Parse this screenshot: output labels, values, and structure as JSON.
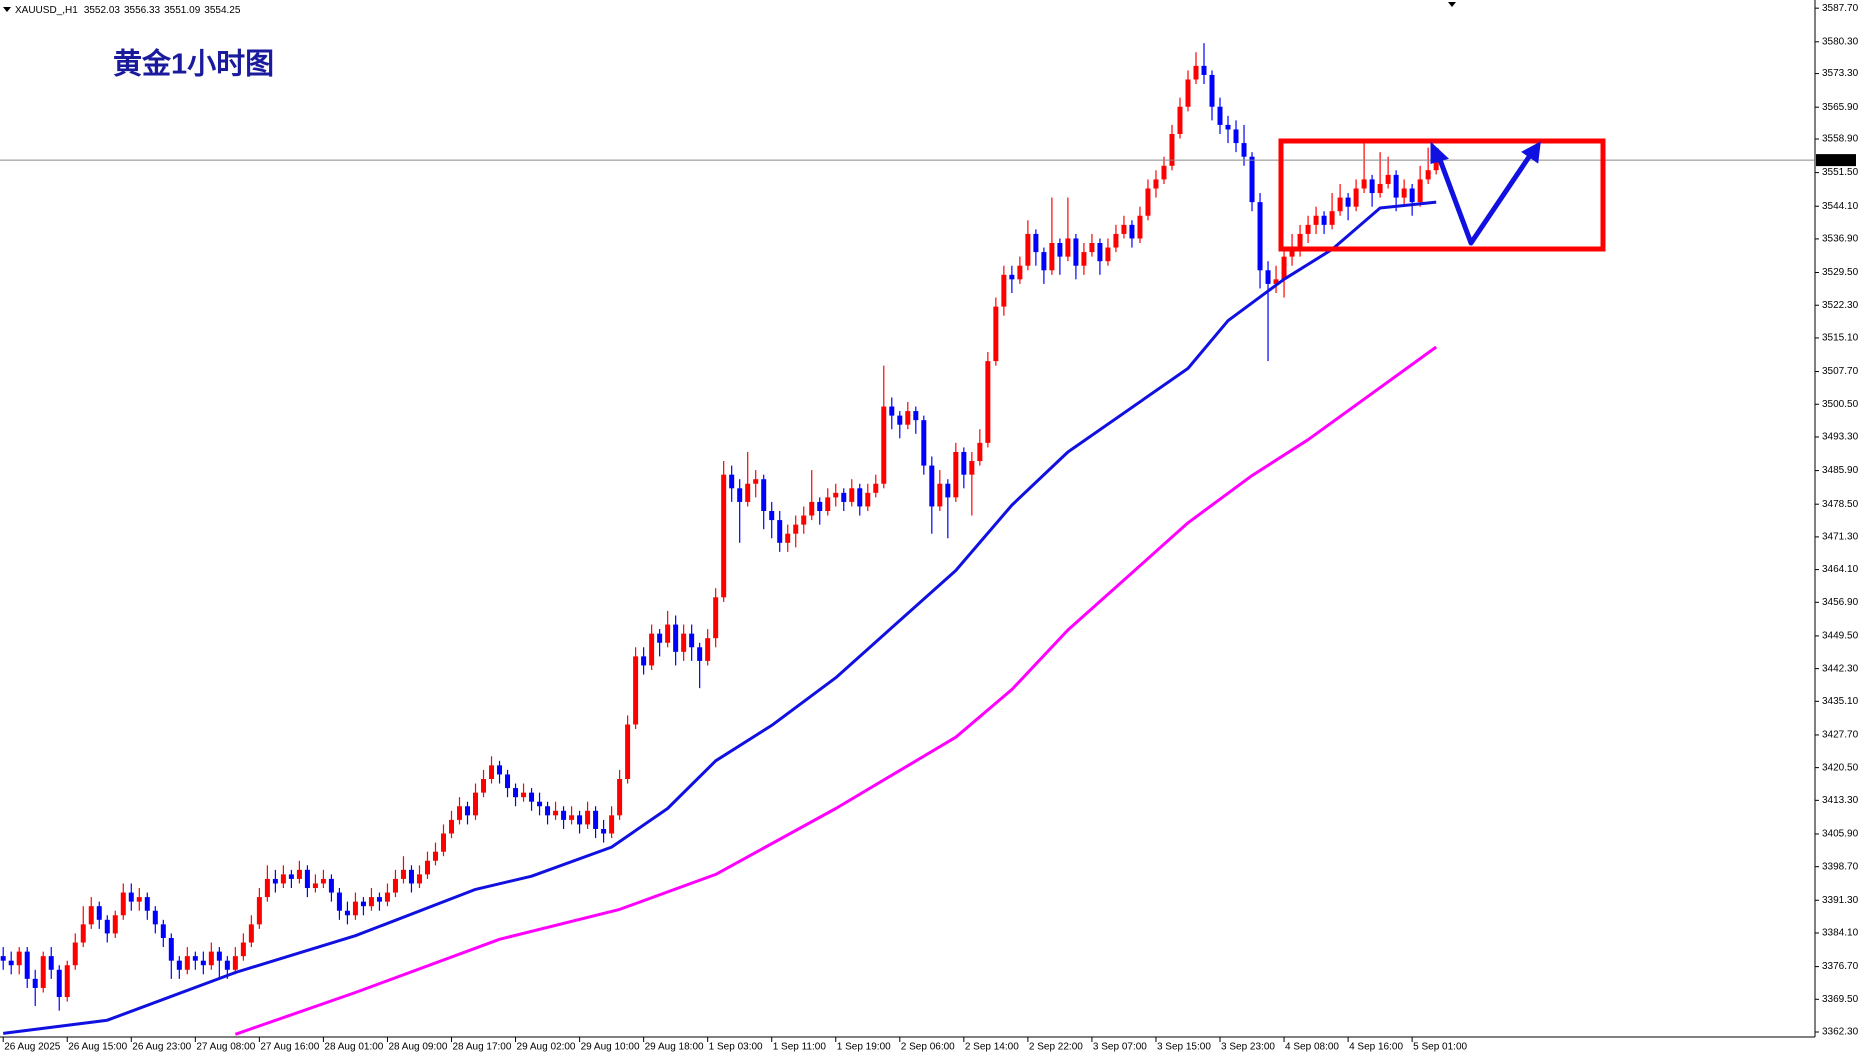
{
  "chart_data": {
    "type": "candlestick",
    "symbol": "XAUUSD_,H1",
    "title": "黄金1小时图",
    "up_color": "#ff0000",
    "down_color": "#0000ff",
    "candles": [
      [
        3379,
        3381,
        3376,
        3378
      ],
      [
        3378,
        3380,
        3375,
        3377
      ],
      [
        3377,
        3381,
        3375,
        3380
      ],
      [
        3380,
        3381,
        3372,
        3374
      ],
      [
        3374,
        3376,
        3368,
        3372
      ],
      [
        3372,
        3380,
        3371,
        3379
      ],
      [
        3379,
        3381,
        3374,
        3376
      ],
      [
        3376,
        3377,
        3367,
        3370
      ],
      [
        3370,
        3378,
        3369,
        3377
      ],
      [
        3377,
        3384,
        3376,
        3382
      ],
      [
        3382,
        3390,
        3381,
        3386
      ],
      [
        3386,
        3392,
        3385,
        3390
      ],
      [
        3390,
        3391,
        3385,
        3387
      ],
      [
        3387,
        3388,
        3382,
        3384
      ],
      [
        3384,
        3389,
        3383,
        3388
      ],
      [
        3388,
        3395,
        3387,
        3393
      ],
      [
        3393,
        3395,
        3389,
        3391
      ],
      [
        3391,
        3394,
        3389,
        3392
      ],
      [
        3392,
        3393,
        3387,
        3389
      ],
      [
        3389,
        3390,
        3384,
        3386
      ],
      [
        3386,
        3387,
        3381,
        3383
      ],
      [
        3383,
        3384,
        3374,
        3378
      ],
      [
        3378,
        3379,
        3374,
        3376
      ],
      [
        3376,
        3381,
        3375,
        3379
      ],
      [
        3379,
        3380,
        3376,
        3378
      ],
      [
        3378,
        3380,
        3375,
        3377
      ],
      [
        3377,
        3382,
        3376,
        3380
      ],
      [
        3380,
        3381,
        3374,
        3378
      ],
      [
        3378,
        3379,
        3374,
        3376
      ],
      [
        3376,
        3381,
        3375,
        3379
      ],
      [
        3379,
        3384,
        3378,
        3382
      ],
      [
        3382,
        3388,
        3381,
        3386
      ],
      [
        3386,
        3394,
        3385,
        3392
      ],
      [
        3392,
        3399,
        3391,
        3396
      ],
      [
        3396,
        3398,
        3393,
        3395
      ],
      [
        3395,
        3399,
        3394,
        3397
      ],
      [
        3397,
        3398,
        3394,
        3396
      ],
      [
        3396,
        3400,
        3395,
        3398
      ],
      [
        3398,
        3399,
        3392,
        3394
      ],
      [
        3394,
        3397,
        3393,
        3395
      ],
      [
        3395,
        3398,
        3394,
        3396
      ],
      [
        3396,
        3397,
        3391,
        3393
      ],
      [
        3393,
        3394,
        3387,
        3389
      ],
      [
        3389,
        3391,
        3386,
        3388
      ],
      [
        3388,
        3393,
        3387,
        3391
      ],
      [
        3391,
        3392,
        3388,
        3390
      ],
      [
        3390,
        3394,
        3389,
        3392
      ],
      [
        3392,
        3393,
        3389,
        3391
      ],
      [
        3391,
        3395,
        3390,
        3393
      ],
      [
        3393,
        3398,
        3392,
        3396
      ],
      [
        3396,
        3401,
        3395,
        3398
      ],
      [
        3398,
        3399,
        3393,
        3395
      ],
      [
        3395,
        3399,
        3394,
        3397
      ],
      [
        3397,
        3402,
        3396,
        3400
      ],
      [
        3400,
        3404,
        3399,
        3402
      ],
      [
        3402,
        3408,
        3401,
        3406
      ],
      [
        3406,
        3411,
        3405,
        3409
      ],
      [
        3409,
        3414,
        3408,
        3412
      ],
      [
        3412,
        3413,
        3408,
        3410
      ],
      [
        3410,
        3417,
        3409,
        3415
      ],
      [
        3415,
        3420,
        3414,
        3418
      ],
      [
        3418,
        3423,
        3417,
        3421
      ],
      [
        3421,
        3422,
        3417,
        3419
      ],
      [
        3419,
        3420,
        3414,
        3416
      ],
      [
        3416,
        3417,
        3412,
        3414
      ],
      [
        3414,
        3417,
        3413,
        3415
      ],
      [
        3415,
        3416,
        3411,
        3413
      ],
      [
        3413,
        3415,
        3410,
        3412
      ],
      [
        3412,
        3413,
        3408,
        3410
      ],
      [
        3410,
        3413,
        3409,
        3411
      ],
      [
        3411,
        3412,
        3407,
        3409
      ],
      [
        3409,
        3412,
        3408,
        3410
      ],
      [
        3410,
        3411,
        3406,
        3408
      ],
      [
        3408,
        3413,
        3407,
        3411
      ],
      [
        3411,
        3412,
        3405,
        3407
      ],
      [
        3407,
        3409,
        3404,
        3406
      ],
      [
        3406,
        3412,
        3405,
        3410
      ],
      [
        3410,
        3420,
        3409,
        3418
      ],
      [
        3418,
        3432,
        3417,
        3430
      ],
      [
        3430,
        3447,
        3429,
        3445
      ],
      [
        3445,
        3447,
        3441,
        3443
      ],
      [
        3443,
        3452,
        3442,
        3450
      ],
      [
        3450,
        3451,
        3445,
        3448
      ],
      [
        3448,
        3455,
        3447,
        3452
      ],
      [
        3452,
        3454,
        3443,
        3446
      ],
      [
        3446,
        3452,
        3444,
        3450
      ],
      [
        3450,
        3452,
        3444,
        3447
      ],
      [
        3447,
        3448,
        3438,
        3444
      ],
      [
        3444,
        3451,
        3443,
        3449
      ],
      [
        3449,
        3460,
        3447,
        3458
      ],
      [
        3458,
        3488,
        3457,
        3485
      ],
      [
        3485,
        3487,
        3479,
        3482
      ],
      [
        3482,
        3484,
        3470,
        3479
      ],
      [
        3479,
        3490,
        3478,
        3483
      ],
      [
        3483,
        3486,
        3480,
        3484
      ],
      [
        3484,
        3485,
        3473,
        3477
      ],
      [
        3477,
        3479,
        3471,
        3475
      ],
      [
        3475,
        3477,
        3468,
        3470
      ],
      [
        3470,
        3474,
        3468,
        3472
      ],
      [
        3472,
        3476,
        3469,
        3474
      ],
      [
        3474,
        3478,
        3472,
        3476
      ],
      [
        3476,
        3486,
        3475,
        3479
      ],
      [
        3479,
        3480,
        3474,
        3477
      ],
      [
        3477,
        3482,
        3476,
        3480
      ],
      [
        3480,
        3483,
        3478,
        3481
      ],
      [
        3481,
        3482,
        3477,
        3479
      ],
      [
        3479,
        3484,
        3478,
        3482
      ],
      [
        3482,
        3483,
        3476,
        3478
      ],
      [
        3478,
        3483,
        3477,
        3481
      ],
      [
        3481,
        3485,
        3480,
        3483
      ],
      [
        3483,
        3509,
        3482,
        3500
      ],
      [
        3500,
        3502,
        3495,
        3498
      ],
      [
        3498,
        3499,
        3493,
        3496
      ],
      [
        3496,
        3501,
        3495,
        3499
      ],
      [
        3499,
        3500,
        3494,
        3497
      ],
      [
        3497,
        3498,
        3485,
        3487
      ],
      [
        3487,
        3489,
        3472,
        3478
      ],
      [
        3478,
        3486,
        3477,
        3483
      ],
      [
        3483,
        3484,
        3471,
        3480
      ],
      [
        3480,
        3492,
        3479,
        3490
      ],
      [
        3490,
        3491,
        3482,
        3485
      ],
      [
        3485,
        3490,
        3476,
        3488
      ],
      [
        3488,
        3495,
        3487,
        3492
      ],
      [
        3492,
        3512,
        3491,
        3510
      ],
      [
        3510,
        3524,
        3509,
        3522
      ],
      [
        3522,
        3531,
        3520,
        3529
      ],
      [
        3529,
        3531,
        3525,
        3528
      ],
      [
        3528,
        3533,
        3527,
        3531
      ],
      [
        3531,
        3541,
        3530,
        3538
      ],
      [
        3538,
        3539,
        3531,
        3534
      ],
      [
        3534,
        3535,
        3527,
        3530
      ],
      [
        3530,
        3546,
        3529,
        3536
      ],
      [
        3536,
        3537,
        3529,
        3533
      ],
      [
        3533,
        3546,
        3532,
        3537
      ],
      [
        3537,
        3538,
        3528,
        3531
      ],
      [
        3531,
        3536,
        3529,
        3534
      ],
      [
        3534,
        3538,
        3533,
        3536
      ],
      [
        3536,
        3537,
        3529,
        3532
      ],
      [
        3532,
        3537,
        3531,
        3535
      ],
      [
        3535,
        3540,
        3534,
        3538
      ],
      [
        3538,
        3542,
        3537,
        3540
      ],
      [
        3540,
        3541,
        3535,
        3537
      ],
      [
        3537,
        3544,
        3536,
        3542
      ],
      [
        3542,
        3550,
        3541,
        3548
      ],
      [
        3548,
        3552,
        3546,
        3550
      ],
      [
        3550,
        3555,
        3549,
        3553
      ],
      [
        3553,
        3562,
        3552,
        3560
      ],
      [
        3560,
        3568,
        3559,
        3566
      ],
      [
        3566,
        3574,
        3565,
        3572
      ],
      [
        3572,
        3578,
        3571,
        3575
      ],
      [
        3575,
        3580,
        3571,
        3573
      ],
      [
        3573,
        3574,
        3563,
        3566
      ],
      [
        3566,
        3568,
        3560,
        3562
      ],
      [
        3562,
        3564,
        3558,
        3561
      ],
      [
        3561,
        3563,
        3556,
        3558
      ],
      [
        3558,
        3562,
        3553,
        3555
      ],
      [
        3555,
        3556,
        3543,
        3545
      ],
      [
        3545,
        3547,
        3526,
        3530
      ],
      [
        3530,
        3532,
        3510,
        3527
      ],
      [
        3527,
        3531,
        3525,
        3528
      ],
      [
        3528,
        3535,
        3524,
        3533
      ],
      [
        3533,
        3538,
        3531,
        3535
      ],
      [
        3535,
        3540,
        3533,
        3538
      ],
      [
        3538,
        3542,
        3536,
        3540
      ],
      [
        3540,
        3544,
        3538,
        3542
      ],
      [
        3542,
        3543,
        3538,
        3540
      ],
      [
        3540,
        3547,
        3539,
        3543
      ],
      [
        3543,
        3549,
        3542,
        3546
      ],
      [
        3546,
        3547,
        3541,
        3544
      ],
      [
        3544,
        3550,
        3543,
        3548
      ],
      [
        3548,
        3558,
        3547,
        3550
      ],
      [
        3550,
        3551,
        3544,
        3547
      ],
      [
        3547,
        3556,
        3546,
        3549
      ],
      [
        3549,
        3555,
        3548,
        3551
      ],
      [
        3551,
        3552,
        3543,
        3546
      ],
      [
        3546,
        3550,
        3544,
        3548
      ],
      [
        3548,
        3549,
        3542,
        3545
      ],
      [
        3545,
        3553,
        3544,
        3550
      ],
      [
        3550,
        3557,
        3549,
        3552.03
      ],
      [
        3552.03,
        3556.33,
        3551.09,
        3554.25
      ]
    ],
    "series": [
      {
        "color": "#1010e0",
        "x": [
          0,
          13,
          29,
          44,
          59,
          66,
          76,
          83,
          89,
          96,
          104,
          119,
          126,
          133,
          148,
          153,
          160,
          166,
          172,
          179
        ],
        "values": [
          3362,
          3364.9,
          3375.4,
          3383.5,
          3393.7,
          3396.6,
          3403,
          3411.5,
          3422,
          3429.8,
          3440.3,
          3463.9,
          3478.3,
          3490,
          3508.4,
          3518.9,
          3528,
          3534.6,
          3543.7,
          3545
        ]
      },
      {
        "color": "#ff00ff",
        "x": [
          29,
          44,
          62,
          77,
          89,
          104,
          119,
          126,
          133,
          148,
          156,
          163,
          179
        ],
        "values": [
          3361.8,
          3371,
          3382.7,
          3389.3,
          3397,
          3411.5,
          3427.2,
          3437.7,
          3450.8,
          3474.4,
          3484.8,
          3492.7,
          3513.1
        ]
      }
    ],
    "xlim": [
      -0.4,
      226.2
    ],
    "ylim": [
      3361.2,
      3589.5
    ],
    "yticks": [
      {
        "value": 3587.7,
        "label": "3587.70"
      },
      {
        "value": 3580.3,
        "label": "3580.30"
      },
      {
        "value": 3573.3,
        "label": "3573.30"
      },
      {
        "value": 3565.9,
        "label": "3565.90"
      },
      {
        "value": 3558.9,
        "label": "3558.90"
      },
      {
        "value": 3551.5,
        "label": "3551.50"
      },
      {
        "value": 3544.1,
        "label": "3544.10"
      },
      {
        "value": 3536.9,
        "label": "3536.90"
      },
      {
        "value": 3529.5,
        "label": "3529.50"
      },
      {
        "value": 3522.3,
        "label": "3522.30"
      },
      {
        "value": 3515.1,
        "label": "3515.10"
      },
      {
        "value": 3507.7,
        "label": "3507.70"
      },
      {
        "value": 3500.5,
        "label": "3500.50"
      },
      {
        "value": 3493.3,
        "label": "3493.30"
      },
      {
        "value": 3485.9,
        "label": "3485.90"
      },
      {
        "value": 3478.5,
        "label": "3478.50"
      },
      {
        "value": 3471.3,
        "label": "3471.30"
      },
      {
        "value": 3464.1,
        "label": "3464.10"
      },
      {
        "value": 3456.9,
        "label": "3456.90"
      },
      {
        "value": 3449.5,
        "label": "3449.50"
      },
      {
        "value": 3442.3,
        "label": "3442.30"
      },
      {
        "value": 3435.1,
        "label": "3435.10"
      },
      {
        "value": 3427.7,
        "label": "3427.70"
      },
      {
        "value": 3420.5,
        "label": "3420.50"
      },
      {
        "value": 3413.3,
        "label": "3413.30"
      },
      {
        "value": 3405.9,
        "label": "3405.90"
      },
      {
        "value": 3398.7,
        "label": "3398.70"
      },
      {
        "value": 3391.3,
        "label": "3391.30"
      },
      {
        "value": 3384.1,
        "label": "3384.10"
      },
      {
        "value": 3376.7,
        "label": "3376.70"
      },
      {
        "value": 3369.5,
        "label": "3369.50"
      },
      {
        "value": 3362.3,
        "label": "3362.30"
      }
    ],
    "xticks": [
      {
        "value": 0,
        "label": "26 Aug 2025"
      },
      {
        "value": 8,
        "label": "26 Aug 15:00"
      },
      {
        "value": 16,
        "label": "26 Aug 23:00"
      },
      {
        "value": 24,
        "label": "27 Aug 08:00"
      },
      {
        "value": 32,
        "label": "27 Aug 16:00"
      },
      {
        "value": 40,
        "label": "28 Aug 01:00"
      },
      {
        "value": 48,
        "label": "28 Aug 09:00"
      },
      {
        "value": 56,
        "label": "28 Aug 17:00"
      },
      {
        "value": 64,
        "label": "29 Aug 02:00"
      },
      {
        "value": 72,
        "label": "29 Aug 10:00"
      },
      {
        "value": 80,
        "label": "29 Aug 18:00"
      },
      {
        "value": 88,
        "label": "1 Sep 03:00"
      },
      {
        "value": 96,
        "label": "1 Sep 11:00"
      },
      {
        "value": 104,
        "label": "1 Sep 19:00"
      },
      {
        "value": 112,
        "label": "2 Sep 06:00"
      },
      {
        "value": 120,
        "label": "2 Sep 14:00"
      },
      {
        "value": 128,
        "label": "2 Sep 22:00"
      },
      {
        "value": 136,
        "label": "3 Sep 07:00"
      },
      {
        "value": 144,
        "label": "3 Sep 15:00"
      },
      {
        "value": 152,
        "label": "3 Sep 23:00"
      },
      {
        "value": 160,
        "label": "4 Sep 08:00"
      },
      {
        "value": 168,
        "label": "4 Sep 16:00"
      },
      {
        "value": 176,
        "label": "5 Sep 01:00"
      }
    ]
  }
}
